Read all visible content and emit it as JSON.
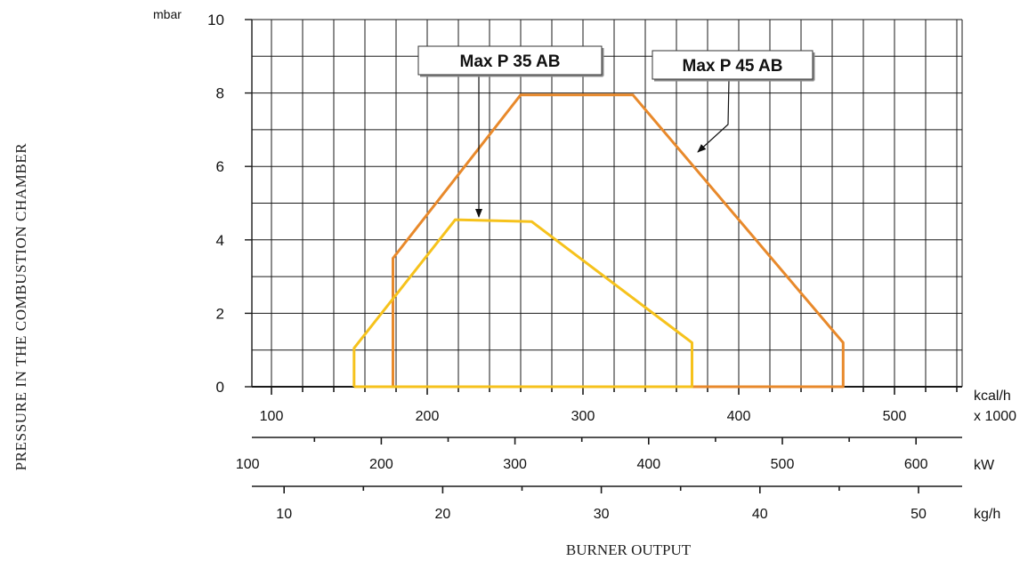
{
  "colors": {
    "grid": "#1a1a1a",
    "max_p_45_ab": "#e8892b",
    "max_p_35_ab": "#f6c21c",
    "label_box_bg": "#ffffff"
  },
  "axis_titles": {
    "y_title": "PRESSURE IN THE COMBUSTION CHAMBER",
    "x_title": "BURNER OUTPUT"
  },
  "chart_data": {
    "type": "line",
    "y_axis": {
      "unit": "mbar",
      "ylim": [
        0,
        10
      ],
      "ticks": [
        0,
        2,
        4,
        6,
        8,
        10
      ],
      "tick_labels": [
        "0",
        "2",
        "4",
        "6",
        "8",
        "10"
      ],
      "grid": true
    },
    "x_axes": [
      {
        "id": "kcal",
        "unit_line1": "kcal/h",
        "unit_line2": "x 1000",
        "ticks": [
          100,
          200,
          300,
          400,
          500
        ],
        "tick_labels": [
          "100",
          "200",
          "300",
          "400",
          "500"
        ]
      },
      {
        "id": "kw",
        "unit": "kW",
        "ticks": [
          100,
          200,
          300,
          400,
          500,
          600
        ],
        "tick_labels": [
          "100",
          "200",
          "300",
          "400",
          "500",
          "600"
        ]
      },
      {
        "id": "kgh",
        "unit": "kg/h",
        "ticks": [
          10,
          20,
          30,
          40,
          50
        ],
        "tick_labels": [
          "10",
          "20",
          "30",
          "40",
          "50"
        ]
      }
    ],
    "x_data_units": "kcal/h x 1000",
    "series": [
      {
        "name": "Max P 45 AB",
        "color_key": "max_p_45_ab",
        "points": [
          [
            178,
            0
          ],
          [
            178,
            3.5
          ],
          [
            260,
            7.95
          ],
          [
            332,
            7.95
          ],
          [
            467,
            1.2
          ],
          [
            467,
            0
          ],
          [
            178,
            0
          ]
        ]
      },
      {
        "name": "Max P 35 AB",
        "color_key": "max_p_35_ab",
        "points": [
          [
            153,
            0
          ],
          [
            153,
            1.05
          ],
          [
            218,
            4.55
          ],
          [
            267,
            4.5
          ],
          [
            370,
            1.2
          ],
          [
            370,
            0
          ],
          [
            153,
            0
          ]
        ]
      }
    ],
    "annotations": [
      {
        "text": "Max P 35 AB",
        "series": "Max P 35 AB",
        "points_to": [
          227,
          4.55
        ]
      },
      {
        "text": "Max P 45 AB",
        "series": "Max P 45 AB",
        "points_to": [
          404,
          6.4
        ]
      }
    ]
  }
}
